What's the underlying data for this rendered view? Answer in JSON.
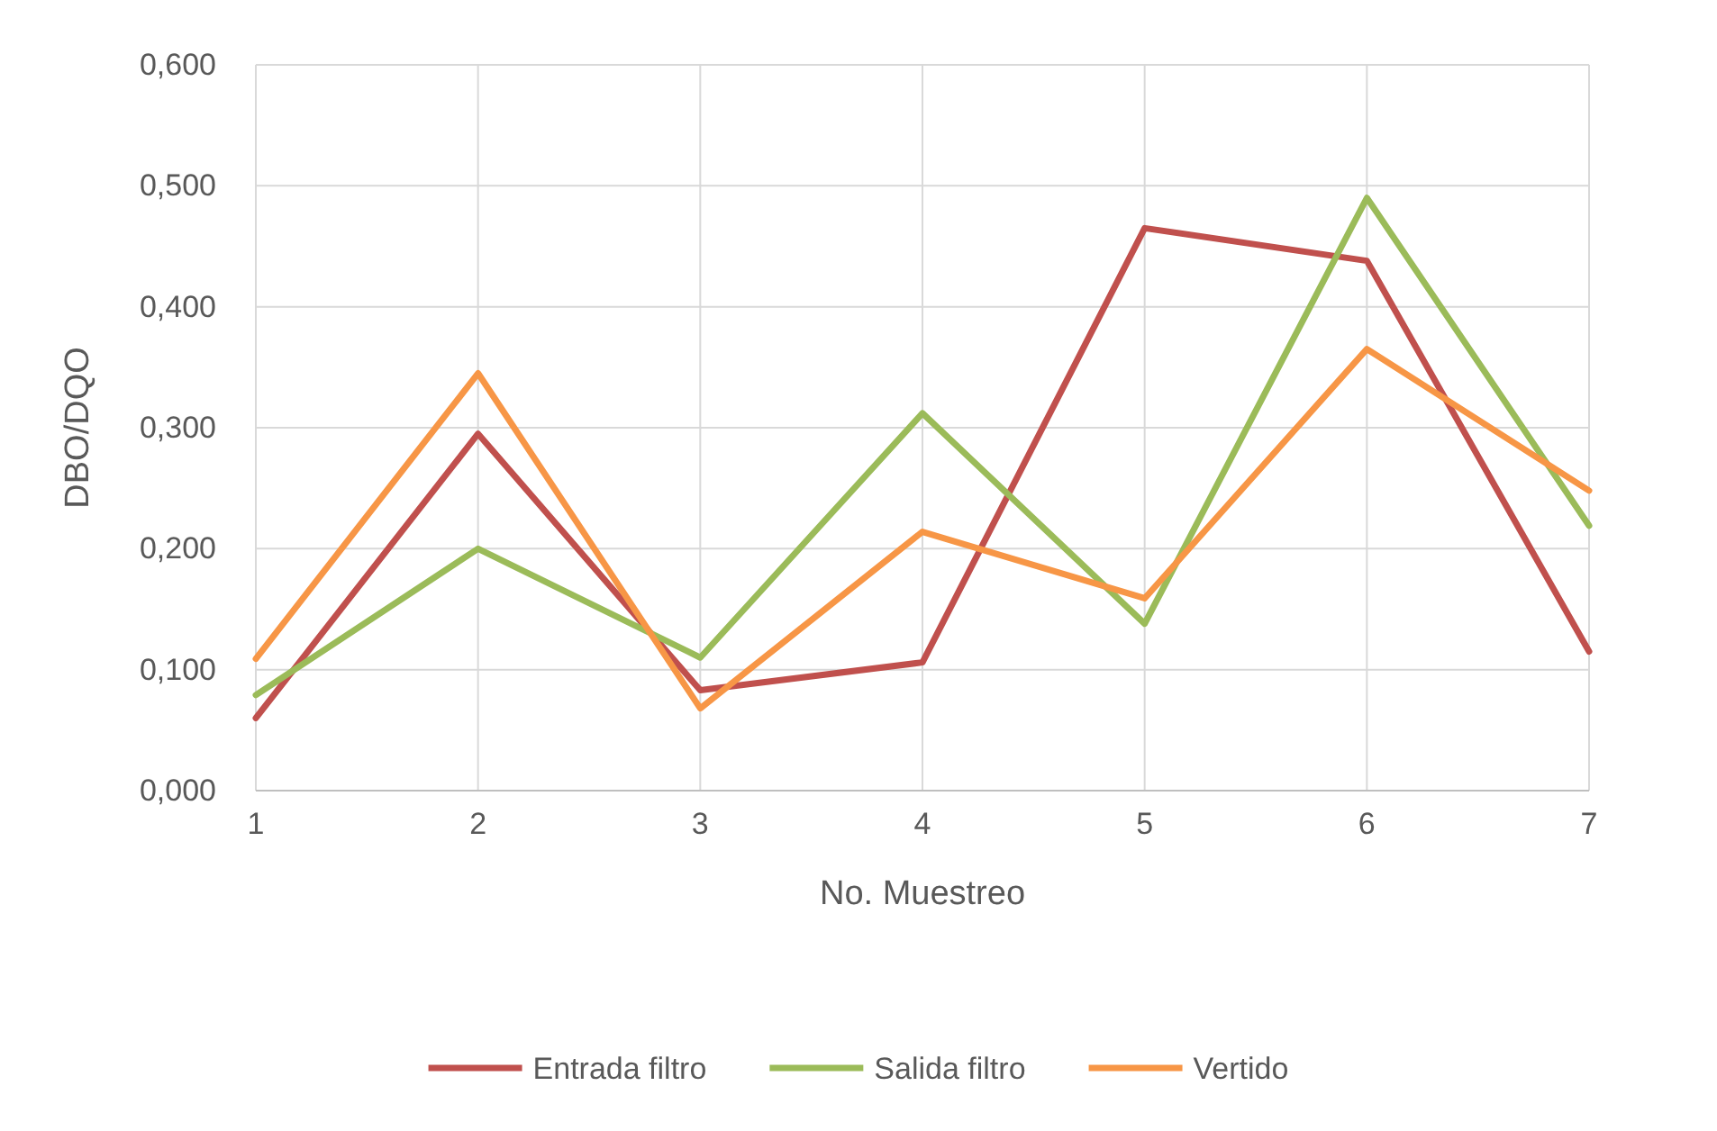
{
  "chart_data": {
    "type": "line",
    "xlabel": "No. Muestreo",
    "ylabel": "DBO/DQO",
    "x": [
      1,
      2,
      3,
      4,
      5,
      6,
      7
    ],
    "series": [
      {
        "name": "Entrada filtro",
        "color": "#c0504d",
        "values": [
          0.06,
          0.295,
          0.083,
          0.106,
          0.465,
          0.438,
          0.115
        ]
      },
      {
        "name": "Salida filtro",
        "color": "#9bbb59",
        "values": [
          0.079,
          0.2,
          0.11,
          0.312,
          0.138,
          0.49,
          0.219
        ]
      },
      {
        "name": "Vertido",
        "color": "#f79646",
        "values": [
          0.109,
          0.345,
          0.068,
          0.214,
          0.159,
          0.365,
          0.248
        ]
      }
    ],
    "xlim": [
      1,
      7
    ],
    "xticks": [
      1,
      2,
      3,
      4,
      5,
      6,
      7
    ],
    "ylim": [
      0,
      0.6
    ],
    "yticks": [
      {
        "value": 0,
        "label": "0,000"
      },
      {
        "value": 0.1,
        "label": "0,100"
      },
      {
        "value": 0.2,
        "label": "0,200"
      },
      {
        "value": 0.3,
        "label": "0,300"
      },
      {
        "value": 0.4,
        "label": "0,400"
      },
      {
        "value": 0.5,
        "label": "0,500"
      },
      {
        "value": 0.6,
        "label": "0,600"
      }
    ],
    "grid": true,
    "legend": "bottom",
    "marker": "none",
    "line_style": "solid"
  }
}
